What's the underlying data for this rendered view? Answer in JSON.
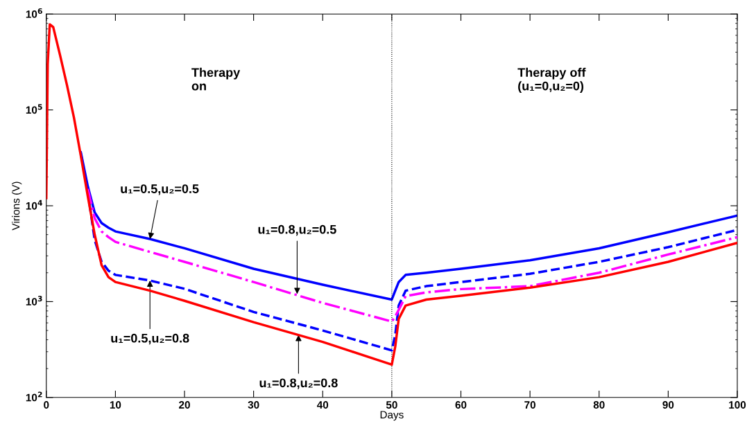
{
  "chart_data": {
    "type": "line",
    "xlabel": "Days",
    "ylabel": "Virions (V)",
    "log": "y",
    "grid": false,
    "legend": false,
    "xlim": [
      0,
      100
    ],
    "xticks": [
      0,
      10,
      20,
      30,
      40,
      50,
      60,
      70,
      80,
      90,
      100
    ],
    "ylim": [
      100,
      1000000
    ],
    "yticks": [
      {
        "value": 100,
        "label": "10$^{2}$"
      },
      {
        "value": 1000,
        "label": "10$^{3}$"
      },
      {
        "value": 10000,
        "label": "10$^{4}$"
      },
      {
        "value": 100000,
        "label": "10$^{5}$"
      },
      {
        "value": 1000000,
        "label": "10$^{6}$"
      }
    ],
    "x": [
      0,
      0.2,
      0.5,
      1,
      2,
      3,
      4,
      5,
      6,
      7,
      8,
      9,
      10,
      15,
      20,
      30,
      40,
      50,
      50.5,
      51,
      52,
      55,
      60,
      70,
      80,
      90,
      100
    ],
    "series": [
      {
        "color": "#0000ff",
        "line_style": "solid",
        "values": [
          null,
          null,
          null,
          null,
          null,
          null,
          null,
          36000,
          16000,
          8500,
          6600,
          5900,
          5400,
          4500,
          3600,
          2200,
          1500,
          1050,
          1300,
          1600,
          1900,
          2000,
          2200,
          2700,
          3600,
          5300,
          7900
        ]
      },
      {
        "color": "#0000ff",
        "line_style": "dashed",
        "values": [
          null,
          null,
          null,
          null,
          null,
          null,
          null,
          35000,
          14000,
          4400,
          2600,
          2100,
          1900,
          1660,
          1360,
          780,
          500,
          310,
          450,
          910,
          1300,
          1450,
          1600,
          1950,
          2600,
          3700,
          5600
        ]
      },
      {
        "color": "#ff00ff",
        "line_style": "dashdot",
        "values": [
          null,
          null,
          null,
          null,
          null,
          null,
          null,
          null,
          15000,
          7400,
          5400,
          4700,
          4200,
          3300,
          2600,
          1600,
          970,
          620,
          700,
          820,
          1140,
          1250,
          1350,
          1450,
          2000,
          3100,
          4700
        ]
      },
      {
        "color": "#ff0000",
        "line_style": "solid",
        "values": [
          12000,
          300000,
          780000,
          730000,
          370000,
          180000,
          83000,
          33000,
          12600,
          5000,
          2400,
          1800,
          1600,
          1300,
          1020,
          610,
          380,
          220,
          340,
          660,
          910,
          1050,
          1150,
          1400,
          1800,
          2600,
          4100
        ]
      }
    ],
    "ref_lines": [
      {
        "axis": "x",
        "value": 50,
        "line_style": "dotted",
        "color": "#000000"
      }
    ],
    "annotations": [
      "Therapy\non",
      "Therapy off\n(u₁=0,u₂=0)",
      {
        "text": "u₁=0.5,u₂=0.5",
        "x": 15,
        "y": 4500
      },
      {
        "text": "u₁=0.8,u₂=0.5",
        "x": 36.3,
        "y": 1200
      },
      {
        "text": "u₁=0.5,u₂=0.8",
        "x": 15,
        "y": 1660
      },
      {
        "text": "u₁=0.8,u₂=0.8",
        "x": 36.5,
        "y": 450
      }
    ]
  }
}
